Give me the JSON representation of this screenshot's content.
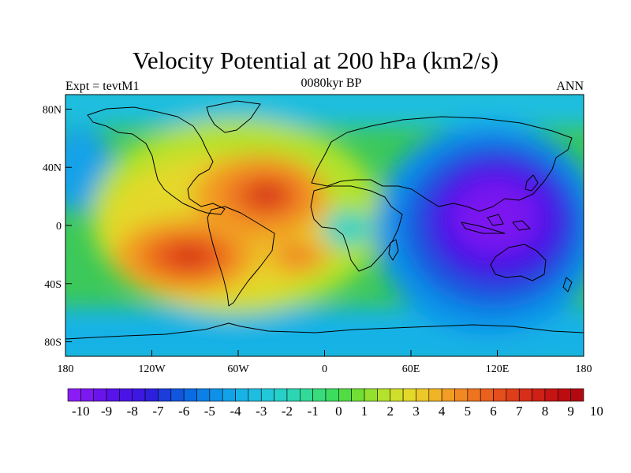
{
  "map": {
    "title": "Velocity Potential at 200 hPa (km2/s)",
    "left_string": "Expt = tevtM1",
    "center_string": "0080kyr BP",
    "right_string": "ANN",
    "projection": "cylindrical-equidistant",
    "lon_range": [
      -180,
      180
    ],
    "lat_range": [
      -90,
      90
    ],
    "lon_ticks": [
      {
        "value": -180,
        "label": "180"
      },
      {
        "value": -120,
        "label": "120W"
      },
      {
        "value": -60,
        "label": "60W"
      },
      {
        "value": 0,
        "label": "0"
      },
      {
        "value": 60,
        "label": "60E"
      },
      {
        "value": 120,
        "label": "120E"
      },
      {
        "value": 180,
        "label": "180"
      }
    ],
    "lat_ticks": [
      {
        "value": 80,
        "label": "80N"
      },
      {
        "value": 40,
        "label": "40N"
      },
      {
        "value": 0,
        "label": "0"
      },
      {
        "value": -40,
        "label": "40S"
      },
      {
        "value": -80,
        "label": "80S"
      }
    ],
    "background_color": "#3cc85a",
    "field_blobs": [
      {
        "name": "north-atlantic-max",
        "lon": -42,
        "lat": 23,
        "rx": 44,
        "ry": 30,
        "value": 9.5
      },
      {
        "name": "south-pacific-max",
        "lon": -95,
        "lat": -20,
        "rx": 50,
        "ry": 28,
        "value": 8.5
      },
      {
        "name": "south-atlantic-max",
        "lon": -25,
        "lat": -22,
        "rx": 25,
        "ry": 16,
        "value": 7
      },
      {
        "name": "pacific-tropical-low",
        "lon": 120,
        "lat": 5,
        "rx": 55,
        "ry": 35,
        "value": -9.5
      }
    ]
  },
  "colorbar": {
    "levels": [
      -10,
      -9.5,
      -9,
      -8.5,
      -8,
      -7.5,
      -7,
      -6.5,
      -6,
      -5.5,
      -5,
      -4.5,
      -4,
      -3.5,
      -3,
      -2.5,
      -2,
      -1.5,
      -1,
      -0.5,
      0,
      0.5,
      1,
      1.5,
      2,
      2.5,
      3,
      3.5,
      4,
      4.5,
      5,
      5.5,
      6,
      6.5,
      7,
      7.5,
      8,
      8.5,
      9,
      9.5,
      10
    ],
    "labels": [
      "-10",
      "-9",
      "-8",
      "-7",
      "-6",
      "-5",
      "-4",
      "-3",
      "-2",
      "-1",
      "0",
      "1",
      "2",
      "3",
      "4",
      "5",
      "6",
      "7",
      "8",
      "9",
      "10"
    ],
    "colors": [
      "#8a1cf4",
      "#7c18f0",
      "#6a14ec",
      "#5812ea",
      "#4a14e6",
      "#3c18e2",
      "#2c20dc",
      "#1c3cdc",
      "#1256de",
      "#0a6ce2",
      "#0c80e6",
      "#0e92e8",
      "#12a2e8",
      "#18b2e6",
      "#1ebee0",
      "#22c8d8",
      "#26d0c8",
      "#2cd6b2",
      "#32da98",
      "#38dc7c",
      "#3cdc60",
      "#52dc44",
      "#72de34",
      "#94e02e",
      "#b4e22c",
      "#d0e02a",
      "#e4d82a",
      "#ecc828",
      "#f0b426",
      "#f29e24",
      "#f28822",
      "#ee7420",
      "#ea601e",
      "#e44e1c",
      "#de3e1a",
      "#d62e18",
      "#ce2016",
      "#c61414",
      "#bc0c12",
      "#b20810"
    ]
  }
}
